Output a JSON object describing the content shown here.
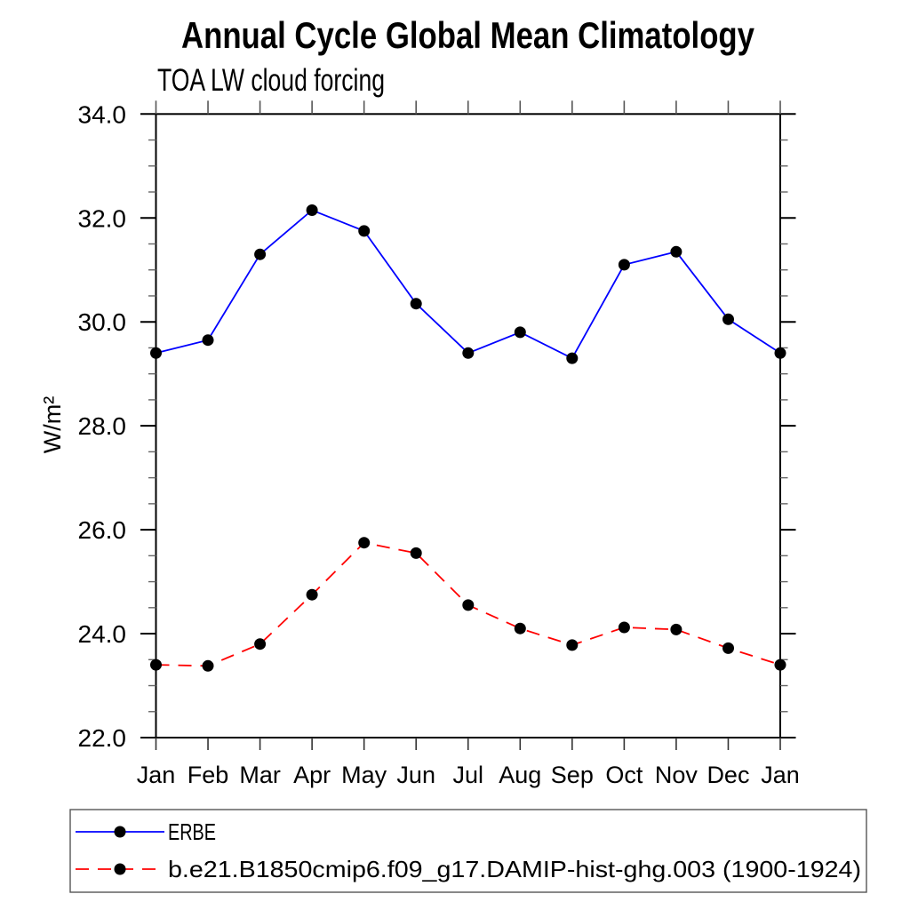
{
  "title": "Annual Cycle Global Mean Climatology",
  "subtitle": "TOA LW cloud forcing",
  "chart_data": {
    "type": "line",
    "categories": [
      "Jan",
      "Feb",
      "Mar",
      "Apr",
      "May",
      "Jun",
      "Jul",
      "Aug",
      "Sep",
      "Oct",
      "Nov",
      "Dec",
      "Jan"
    ],
    "xlabel": "",
    "ylabel": "W/m²",
    "ylim": [
      22.0,
      34.0
    ],
    "ytick_interval": 2.0,
    "ytick_minor_interval": 0.5,
    "ytick_labels": [
      "22.0",
      "24.0",
      "26.0",
      "28.0",
      "30.0",
      "32.0",
      "34.0"
    ],
    "grid": false,
    "legend_position": "bottom-left-box",
    "series": [
      {
        "name": "ERBE",
        "line_color": "#0000ff",
        "line_style": "solid",
        "marker": "filled-circle",
        "marker_color": "#000000",
        "values": [
          29.4,
          29.65,
          31.3,
          32.15,
          31.75,
          30.35,
          29.4,
          29.8,
          29.3,
          31.1,
          31.35,
          30.05,
          29.4
        ]
      },
      {
        "name": "b.e21.B1850cmip6.f09_g17.DAMIP-hist-ghg.003 (1900-1924)",
        "line_color": "#ff0000",
        "line_style": "dashed",
        "marker": "filled-circle",
        "marker_color": "#000000",
        "values": [
          23.4,
          23.38,
          23.8,
          24.75,
          25.75,
          25.55,
          24.55,
          24.1,
          23.78,
          24.12,
          24.08,
          23.72,
          23.4
        ]
      }
    ]
  }
}
